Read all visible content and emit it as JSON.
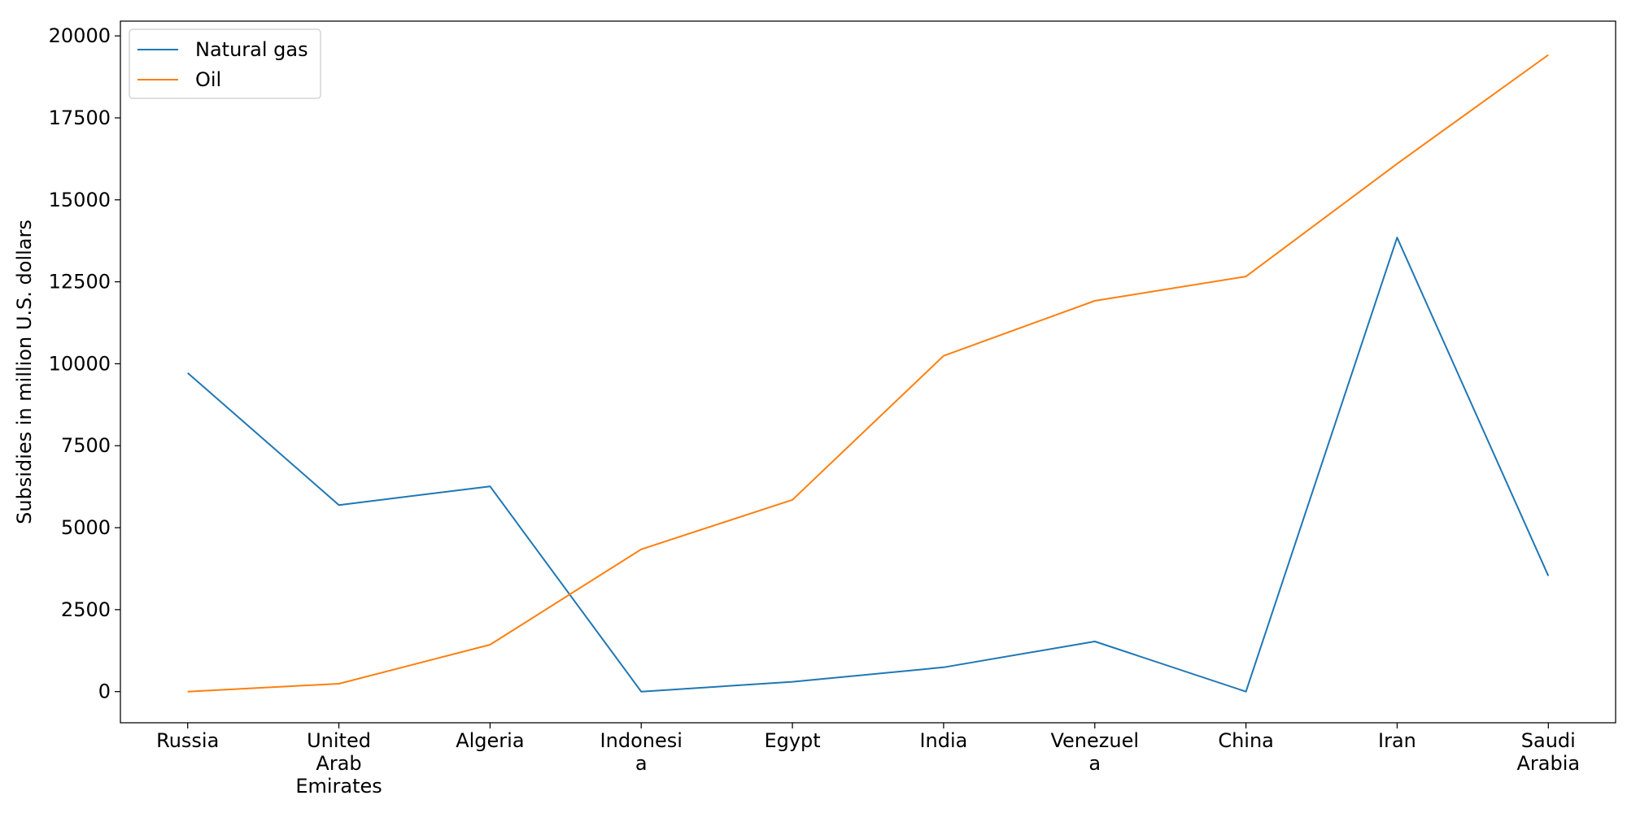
{
  "chart_data": {
    "type": "line",
    "categories": [
      [
        "Russia"
      ],
      [
        "United",
        "Arab",
        "Emirates"
      ],
      [
        "Algeria"
      ],
      [
        "Indonesi",
        "a"
      ],
      [
        "Egypt"
      ],
      [
        "India"
      ],
      [
        "Venezuel",
        "a"
      ],
      [
        "China"
      ],
      [
        "Iran"
      ],
      [
        "Saudi",
        "Arabia"
      ]
    ],
    "series": [
      {
        "name": "Natural gas",
        "color": "#1f77b4",
        "values": [
          9720,
          5690,
          6260,
          0,
          300,
          740,
          1530,
          0,
          13850,
          3530
        ]
      },
      {
        "name": "Oil",
        "color": "#ff7f0e",
        "values": [
          0,
          240,
          1430,
          4340,
          5850,
          10240,
          11920,
          12660,
          16100,
          19420
        ]
      }
    ],
    "ylabel": "Subsidies in million U.S. dollars",
    "ylim": [
      -950,
      20450
    ],
    "yticks": [
      0,
      2500,
      5000,
      7500,
      10000,
      12500,
      15000,
      17500,
      20000
    ],
    "legend_position": "top-left",
    "grid": false
  }
}
